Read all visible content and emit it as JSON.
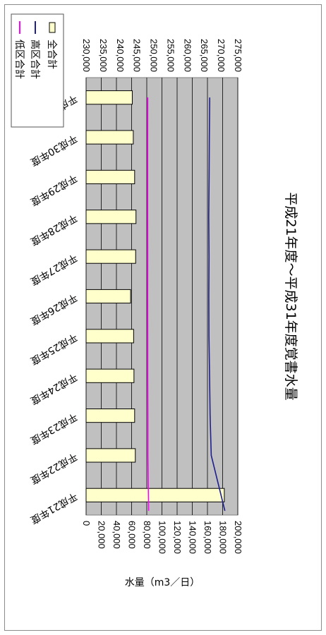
{
  "chart_data": {
    "type": "bar",
    "title": "平成21年度～平成31年度覚書水量",
    "ylabel": "水量（m3／日）",
    "categories": [
      "平成21年度",
      "平成22年度",
      "平成23年度",
      "平成24年度",
      "平成25年度",
      "平成26年度",
      "平成27年度",
      "平成28年度",
      "平成29年度",
      "平成30年度",
      "平成31年度"
    ],
    "ylim_left": [
      0,
      200000
    ],
    "ylim_right": [
      230000,
      275000
    ],
    "left_ticks": [
      "0",
      "20,000",
      "40,000",
      "60,000",
      "80,000",
      "100,000",
      "120,000",
      "140,000",
      "160,000",
      "180,000",
      "200,000"
    ],
    "right_ticks": [
      "230,000",
      "235,000",
      "240,000",
      "245,000",
      "250,000",
      "255,000",
      "260,000",
      "265,000",
      "270,000",
      "275,000"
    ],
    "grid": true,
    "legend_position": "top-right",
    "series": [
      {
        "name": "全合計",
        "axis": "right",
        "kind": "bar",
        "color": "#ffffcc",
        "values": [
          271000,
          244600,
          244400,
          244200,
          244100,
          243200,
          244700,
          244800,
          244400,
          244000,
          243700
        ]
      },
      {
        "name": "高区合計",
        "axis": "left",
        "kind": "line",
        "color": "#1f1f8f",
        "values": [
          183000,
          165000,
          163500,
          162800,
          162000,
          161800,
          162100,
          161700,
          162200,
          162500,
          163000
        ]
      },
      {
        "name": "低区合計",
        "axis": "left",
        "kind": "line",
        "color": "#ff00ff",
        "values": [
          82500,
          81500,
          81500,
          81300,
          81300,
          81200,
          81300,
          81200,
          81200,
          81200,
          81300
        ]
      }
    ]
  }
}
